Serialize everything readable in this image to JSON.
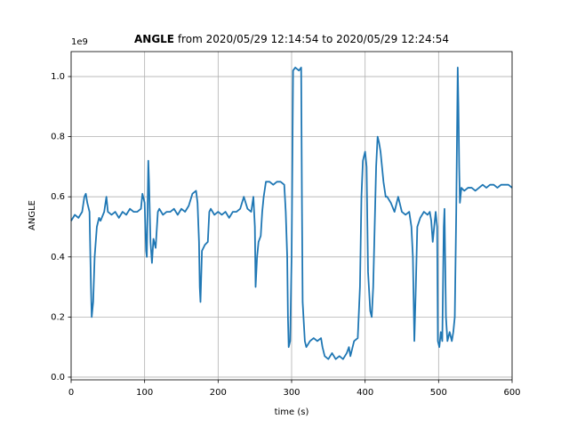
{
  "chart_data": {
    "type": "line",
    "title": {
      "bold": "ANGLE",
      "rest": " from 2020/05/29 12:14:54 to 2020/05/29 12:24:54"
    },
    "offset_text": "1e9",
    "xlabel": "time (s)",
    "ylabel": "ANGLE",
    "x": [
      0,
      5,
      10,
      15,
      18,
      20,
      22,
      25,
      27,
      28,
      30,
      32,
      35,
      38,
      40,
      45,
      48,
      50,
      55,
      60,
      65,
      70,
      75,
      80,
      85,
      90,
      95,
      97,
      100,
      102,
      103,
      104,
      105,
      106,
      108,
      110,
      112,
      115,
      118,
      120,
      125,
      130,
      135,
      140,
      145,
      150,
      155,
      160,
      165,
      170,
      172,
      174,
      175,
      176,
      178,
      182,
      186,
      188,
      190,
      195,
      200,
      205,
      210,
      215,
      220,
      225,
      230,
      235,
      240,
      245,
      248,
      250,
      251,
      253,
      255,
      258,
      260,
      262,
      265,
      270,
      275,
      280,
      285,
      290,
      292,
      294,
      295,
      296,
      298,
      300,
      302,
      305,
      310,
      313,
      314,
      315,
      318,
      320,
      325,
      330,
      335,
      340,
      342,
      345,
      350,
      355,
      360,
      365,
      370,
      375,
      378,
      380,
      385,
      390,
      393,
      395,
      397,
      400,
      402,
      404,
      407,
      409,
      411,
      413,
      415,
      417,
      419,
      421,
      423,
      425,
      428,
      430,
      435,
      440,
      445,
      450,
      455,
      460,
      463,
      465,
      467,
      469,
      471,
      475,
      480,
      485,
      488,
      490,
      492,
      494,
      496,
      498,
      499,
      501,
      503,
      505,
      507,
      508,
      510,
      512,
      515,
      518,
      520,
      522,
      524,
      526,
      527,
      528,
      529,
      531,
      535,
      540,
      545,
      550,
      555,
      560,
      565,
      570,
      575,
      580,
      585,
      590,
      595,
      600
    ],
    "series": [
      {
        "name": "ANGLE",
        "color": "#1f77b4",
        "values": [
          0.52,
          0.54,
          0.53,
          0.55,
          0.6,
          0.61,
          0.58,
          0.55,
          0.3,
          0.2,
          0.25,
          0.4,
          0.5,
          0.53,
          0.52,
          0.55,
          0.6,
          0.55,
          0.54,
          0.55,
          0.53,
          0.55,
          0.54,
          0.56,
          0.55,
          0.55,
          0.56,
          0.61,
          0.58,
          0.42,
          0.4,
          0.55,
          0.72,
          0.65,
          0.45,
          0.38,
          0.46,
          0.43,
          0.55,
          0.56,
          0.54,
          0.55,
          0.55,
          0.56,
          0.54,
          0.56,
          0.55,
          0.57,
          0.61,
          0.62,
          0.58,
          0.45,
          0.3,
          0.25,
          0.42,
          0.44,
          0.45,
          0.55,
          0.56,
          0.54,
          0.55,
          0.54,
          0.55,
          0.53,
          0.55,
          0.55,
          0.56,
          0.6,
          0.56,
          0.55,
          0.6,
          0.5,
          0.3,
          0.4,
          0.45,
          0.47,
          0.55,
          0.6,
          0.65,
          0.65,
          0.64,
          0.65,
          0.65,
          0.64,
          0.55,
          0.4,
          0.2,
          0.1,
          0.12,
          0.4,
          1.02,
          1.03,
          1.02,
          1.03,
          0.6,
          0.25,
          0.12,
          0.1,
          0.12,
          0.13,
          0.12,
          0.13,
          0.1,
          0.07,
          0.06,
          0.08,
          0.06,
          0.07,
          0.06,
          0.08,
          0.1,
          0.07,
          0.12,
          0.13,
          0.3,
          0.6,
          0.72,
          0.75,
          0.7,
          0.35,
          0.22,
          0.2,
          0.3,
          0.5,
          0.7,
          0.8,
          0.78,
          0.75,
          0.7,
          0.65,
          0.6,
          0.6,
          0.58,
          0.55,
          0.6,
          0.55,
          0.54,
          0.55,
          0.5,
          0.4,
          0.12,
          0.3,
          0.5,
          0.53,
          0.55,
          0.54,
          0.55,
          0.52,
          0.45,
          0.5,
          0.55,
          0.5,
          0.12,
          0.1,
          0.15,
          0.12,
          0.5,
          0.56,
          0.2,
          0.12,
          0.15,
          0.12,
          0.15,
          0.2,
          0.55,
          1.03,
          0.9,
          0.7,
          0.58,
          0.63,
          0.62,
          0.63,
          0.63,
          0.62,
          0.63,
          0.64,
          0.63,
          0.64,
          0.64,
          0.63,
          0.64,
          0.64,
          0.64,
          0.63
        ]
      }
    ],
    "xlim": [
      0,
      600
    ],
    "xticks": [
      0,
      100,
      200,
      300,
      400,
      500,
      600
    ],
    "ylim": [
      -0.009,
      1.083
    ],
    "yticks": [
      {
        "value": 0,
        "label": "0.0"
      },
      {
        "value": 0.2,
        "label": "0.2"
      },
      {
        "value": 0.4,
        "label": "0.4"
      },
      {
        "value": 0.6,
        "label": "0.6"
      },
      {
        "value": 0.8,
        "label": "0.8"
      },
      {
        "value": 1,
        "label": "1.0"
      }
    ],
    "grid": true
  }
}
